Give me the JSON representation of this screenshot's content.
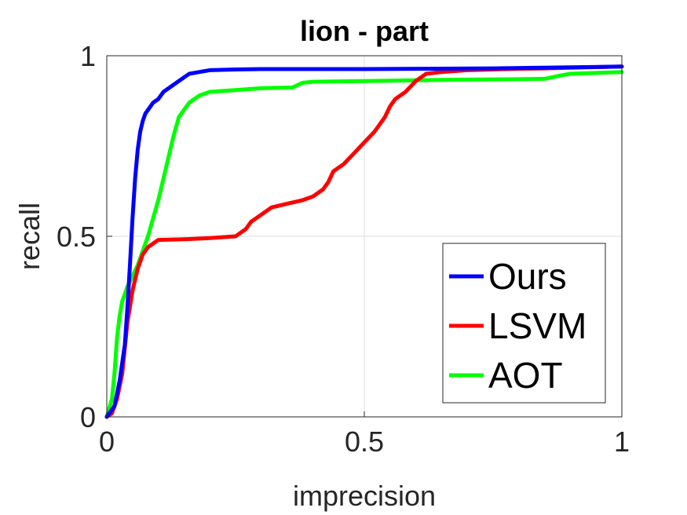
{
  "chart_data": {
    "type": "line",
    "title": "lion - part",
    "xlabel": "imprecision",
    "ylabel": "recall",
    "xlim": [
      0,
      1
    ],
    "ylim": [
      0,
      1
    ],
    "xticks": [
      0,
      0.5,
      1
    ],
    "xtick_labels": [
      "0",
      "0.5",
      "1"
    ],
    "yticks": [
      0,
      0.5,
      1
    ],
    "ytick_labels": [
      "0",
      "0.5",
      "1"
    ],
    "grid": true,
    "legend_position": "bottom-right",
    "series": [
      {
        "name": "Ours",
        "color": "#0000ff",
        "x": [
          0.0,
          0.015,
          0.025,
          0.035,
          0.04,
          0.045,
          0.05,
          0.055,
          0.06,
          0.065,
          0.07,
          0.075,
          0.08,
          0.09,
          0.1,
          0.11,
          0.12,
          0.14,
          0.16,
          0.18,
          0.2,
          0.25,
          0.3,
          0.5,
          0.75,
          1.0
        ],
        "y": [
          0.0,
          0.03,
          0.1,
          0.2,
          0.3,
          0.42,
          0.55,
          0.66,
          0.74,
          0.79,
          0.82,
          0.84,
          0.85,
          0.87,
          0.88,
          0.9,
          0.91,
          0.93,
          0.95,
          0.955,
          0.96,
          0.962,
          0.963,
          0.963,
          0.965,
          0.97
        ]
      },
      {
        "name": "LSVM",
        "color": "#ff0000",
        "x": [
          0.0,
          0.01,
          0.02,
          0.03,
          0.04,
          0.05,
          0.06,
          0.07,
          0.08,
          0.1,
          0.15,
          0.2,
          0.25,
          0.27,
          0.28,
          0.29,
          0.3,
          0.32,
          0.35,
          0.38,
          0.4,
          0.42,
          0.43,
          0.44,
          0.46,
          0.48,
          0.5,
          0.52,
          0.54,
          0.55,
          0.56,
          0.58,
          0.6,
          0.62,
          0.65,
          0.7,
          0.75,
          0.8,
          0.85,
          0.9,
          1.0
        ],
        "y": [
          0.0,
          0.01,
          0.05,
          0.12,
          0.26,
          0.35,
          0.41,
          0.45,
          0.47,
          0.49,
          0.492,
          0.495,
          0.5,
          0.52,
          0.54,
          0.55,
          0.56,
          0.58,
          0.59,
          0.6,
          0.61,
          0.63,
          0.65,
          0.68,
          0.7,
          0.73,
          0.76,
          0.79,
          0.83,
          0.86,
          0.88,
          0.9,
          0.93,
          0.95,
          0.955,
          0.96,
          0.962,
          0.964,
          0.965,
          0.967,
          0.97
        ]
      },
      {
        "name": "AOT",
        "color": "#00ff00",
        "x": [
          0.0,
          0.01,
          0.015,
          0.02,
          0.025,
          0.03,
          0.04,
          0.06,
          0.07,
          0.08,
          0.09,
          0.1,
          0.11,
          0.12,
          0.13,
          0.14,
          0.15,
          0.16,
          0.18,
          0.2,
          0.25,
          0.3,
          0.36,
          0.38,
          0.4,
          0.5,
          0.6,
          0.7,
          0.8,
          0.85,
          0.88,
          0.9,
          1.0
        ],
        "y": [
          0.0,
          0.05,
          0.12,
          0.22,
          0.28,
          0.32,
          0.36,
          0.42,
          0.46,
          0.5,
          0.55,
          0.6,
          0.66,
          0.72,
          0.78,
          0.83,
          0.85,
          0.87,
          0.89,
          0.9,
          0.905,
          0.91,
          0.912,
          0.925,
          0.928,
          0.93,
          0.932,
          0.934,
          0.935,
          0.936,
          0.945,
          0.95,
          0.955
        ]
      }
    ]
  }
}
